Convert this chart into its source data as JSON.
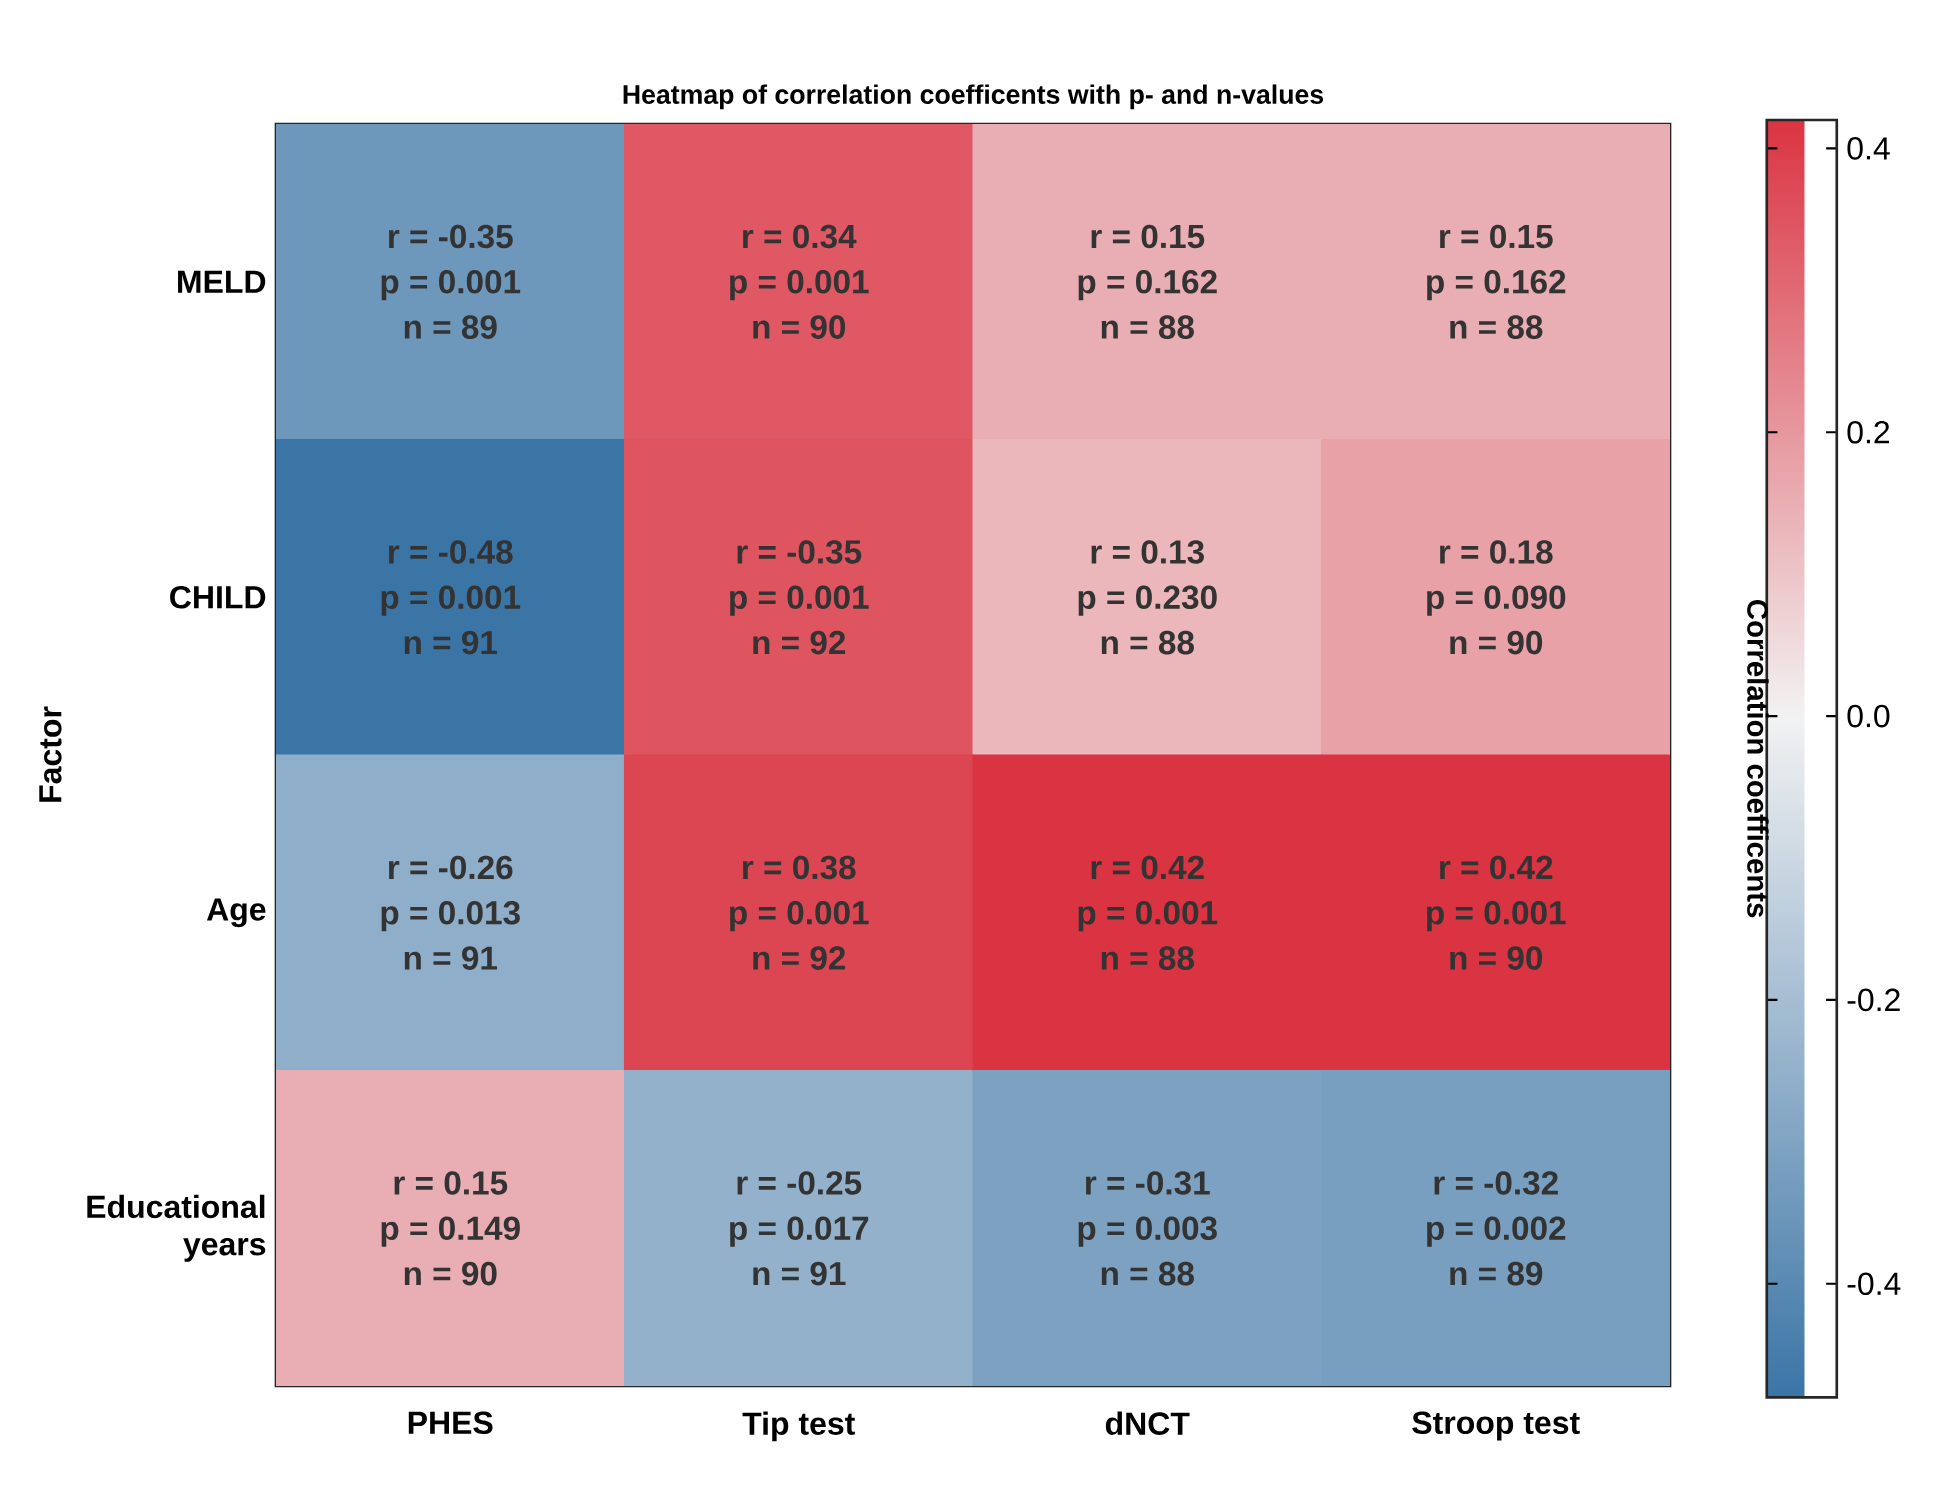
{
  "chart_data": {
    "type": "heatmap",
    "title": "Heatmap of correlation coefficents with p- and n-values",
    "ylabel": "Factor",
    "clabel": "Correlation coefficents",
    "categories": [
      "PHES",
      "Tip test",
      "dNCT",
      "Stroop test"
    ],
    "y_categories": [
      "MELD",
      "CHILD",
      "Age",
      "Educational years"
    ],
    "cells": [
      [
        -0.35,
        0.34,
        0.15,
        0.15
      ],
      [
        -0.48,
        0.35,
        0.13,
        0.18
      ],
      [
        -0.26,
        0.38,
        0.42,
        0.42
      ],
      [
        0.15,
        -0.25,
        -0.31,
        -0.32
      ]
    ],
    "cell_labels": [
      [
        [
          "r = -0.35",
          "p = 0.001",
          "n = 89"
        ],
        [
          "r = 0.34",
          "p = 0.001",
          "n = 90"
        ],
        [
          "r = 0.15",
          "p = 0.162",
          "n = 88"
        ],
        [
          "r = 0.15",
          "p = 0.162",
          "n = 88"
        ]
      ],
      [
        [
          "r = -0.48",
          "p = 0.001",
          "n = 91"
        ],
        [
          "r = -0.35",
          "p = 0.001",
          "n = 92"
        ],
        [
          "r = 0.13",
          "p = 0.230",
          "n = 88"
        ],
        [
          "r = 0.18",
          "p = 0.090",
          "n = 90"
        ]
      ],
      [
        [
          "r = -0.26",
          "p = 0.013",
          "n = 91"
        ],
        [
          "r = 0.38",
          "p = 0.001",
          "n = 92"
        ],
        [
          "r = 0.42",
          "p = 0.001",
          "n = 88"
        ],
        [
          "r = 0.42",
          "p = 0.001",
          "n = 90"
        ]
      ],
      [
        [
          "r = 0.15",
          "p = 0.149",
          "n = 90"
        ],
        [
          "r = -0.25",
          "p = 0.017",
          "n = 91"
        ],
        [
          "r = -0.31",
          "p = 0.003",
          "n = 88"
        ],
        [
          "r = -0.32",
          "p = 0.002",
          "n = 89"
        ]
      ]
    ],
    "clim": [
      -0.48,
      0.42
    ],
    "cticks": [
      -0.4,
      -0.2,
      {
        "value": 0,
        "label": "0.0"
      },
      0.2,
      0.4
    ]
  }
}
